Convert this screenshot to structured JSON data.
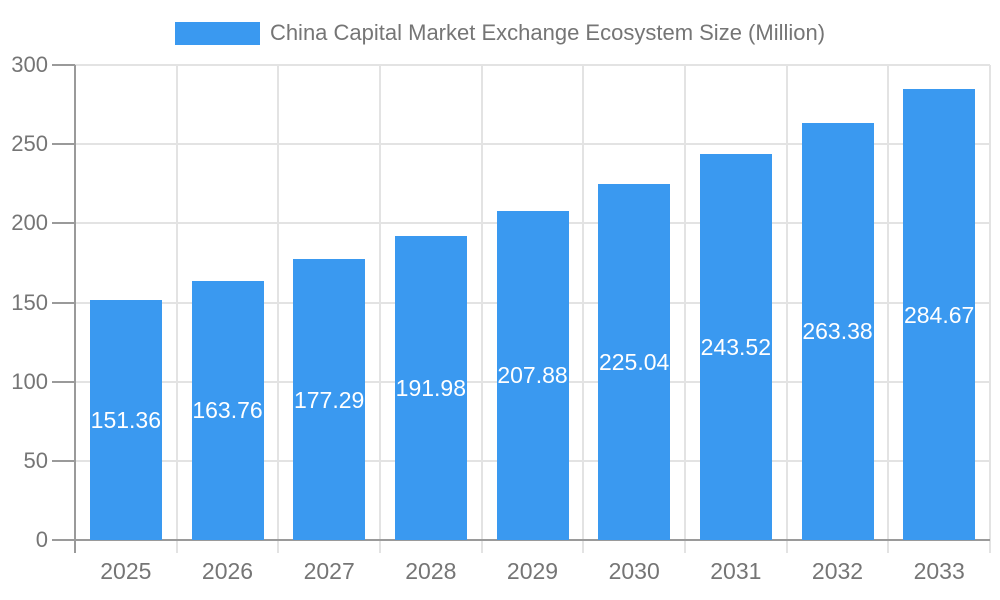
{
  "chart_data": {
    "type": "bar",
    "title": "China Capital Market Exchange Ecosystem Size (Million)",
    "categories": [
      "2025",
      "2026",
      "2027",
      "2028",
      "2029",
      "2030",
      "2031",
      "2032",
      "2033"
    ],
    "values": [
      151.36,
      163.76,
      177.29,
      191.98,
      207.88,
      225.04,
      243.52,
      263.38,
      284.67
    ],
    "value_labels": [
      "151.36",
      "163.76",
      "177.29",
      "191.98",
      "207.88",
      "225.04",
      "243.52",
      "263.38",
      "284.67"
    ],
    "xlabel": "",
    "ylabel": "",
    "ylim": [
      0,
      300
    ],
    "yticks": [
      0,
      50,
      100,
      150,
      200,
      250,
      300
    ],
    "grid": true,
    "legend_position": "top",
    "value_label_position": "inside-center",
    "colors": {
      "bar": "#3a99f0",
      "grid": "#e3e3e3",
      "axis": "#9a9a9a",
      "tick_label": "#757575",
      "title": "#757575",
      "value_label": "#ffffff",
      "background": "#ffffff"
    }
  }
}
